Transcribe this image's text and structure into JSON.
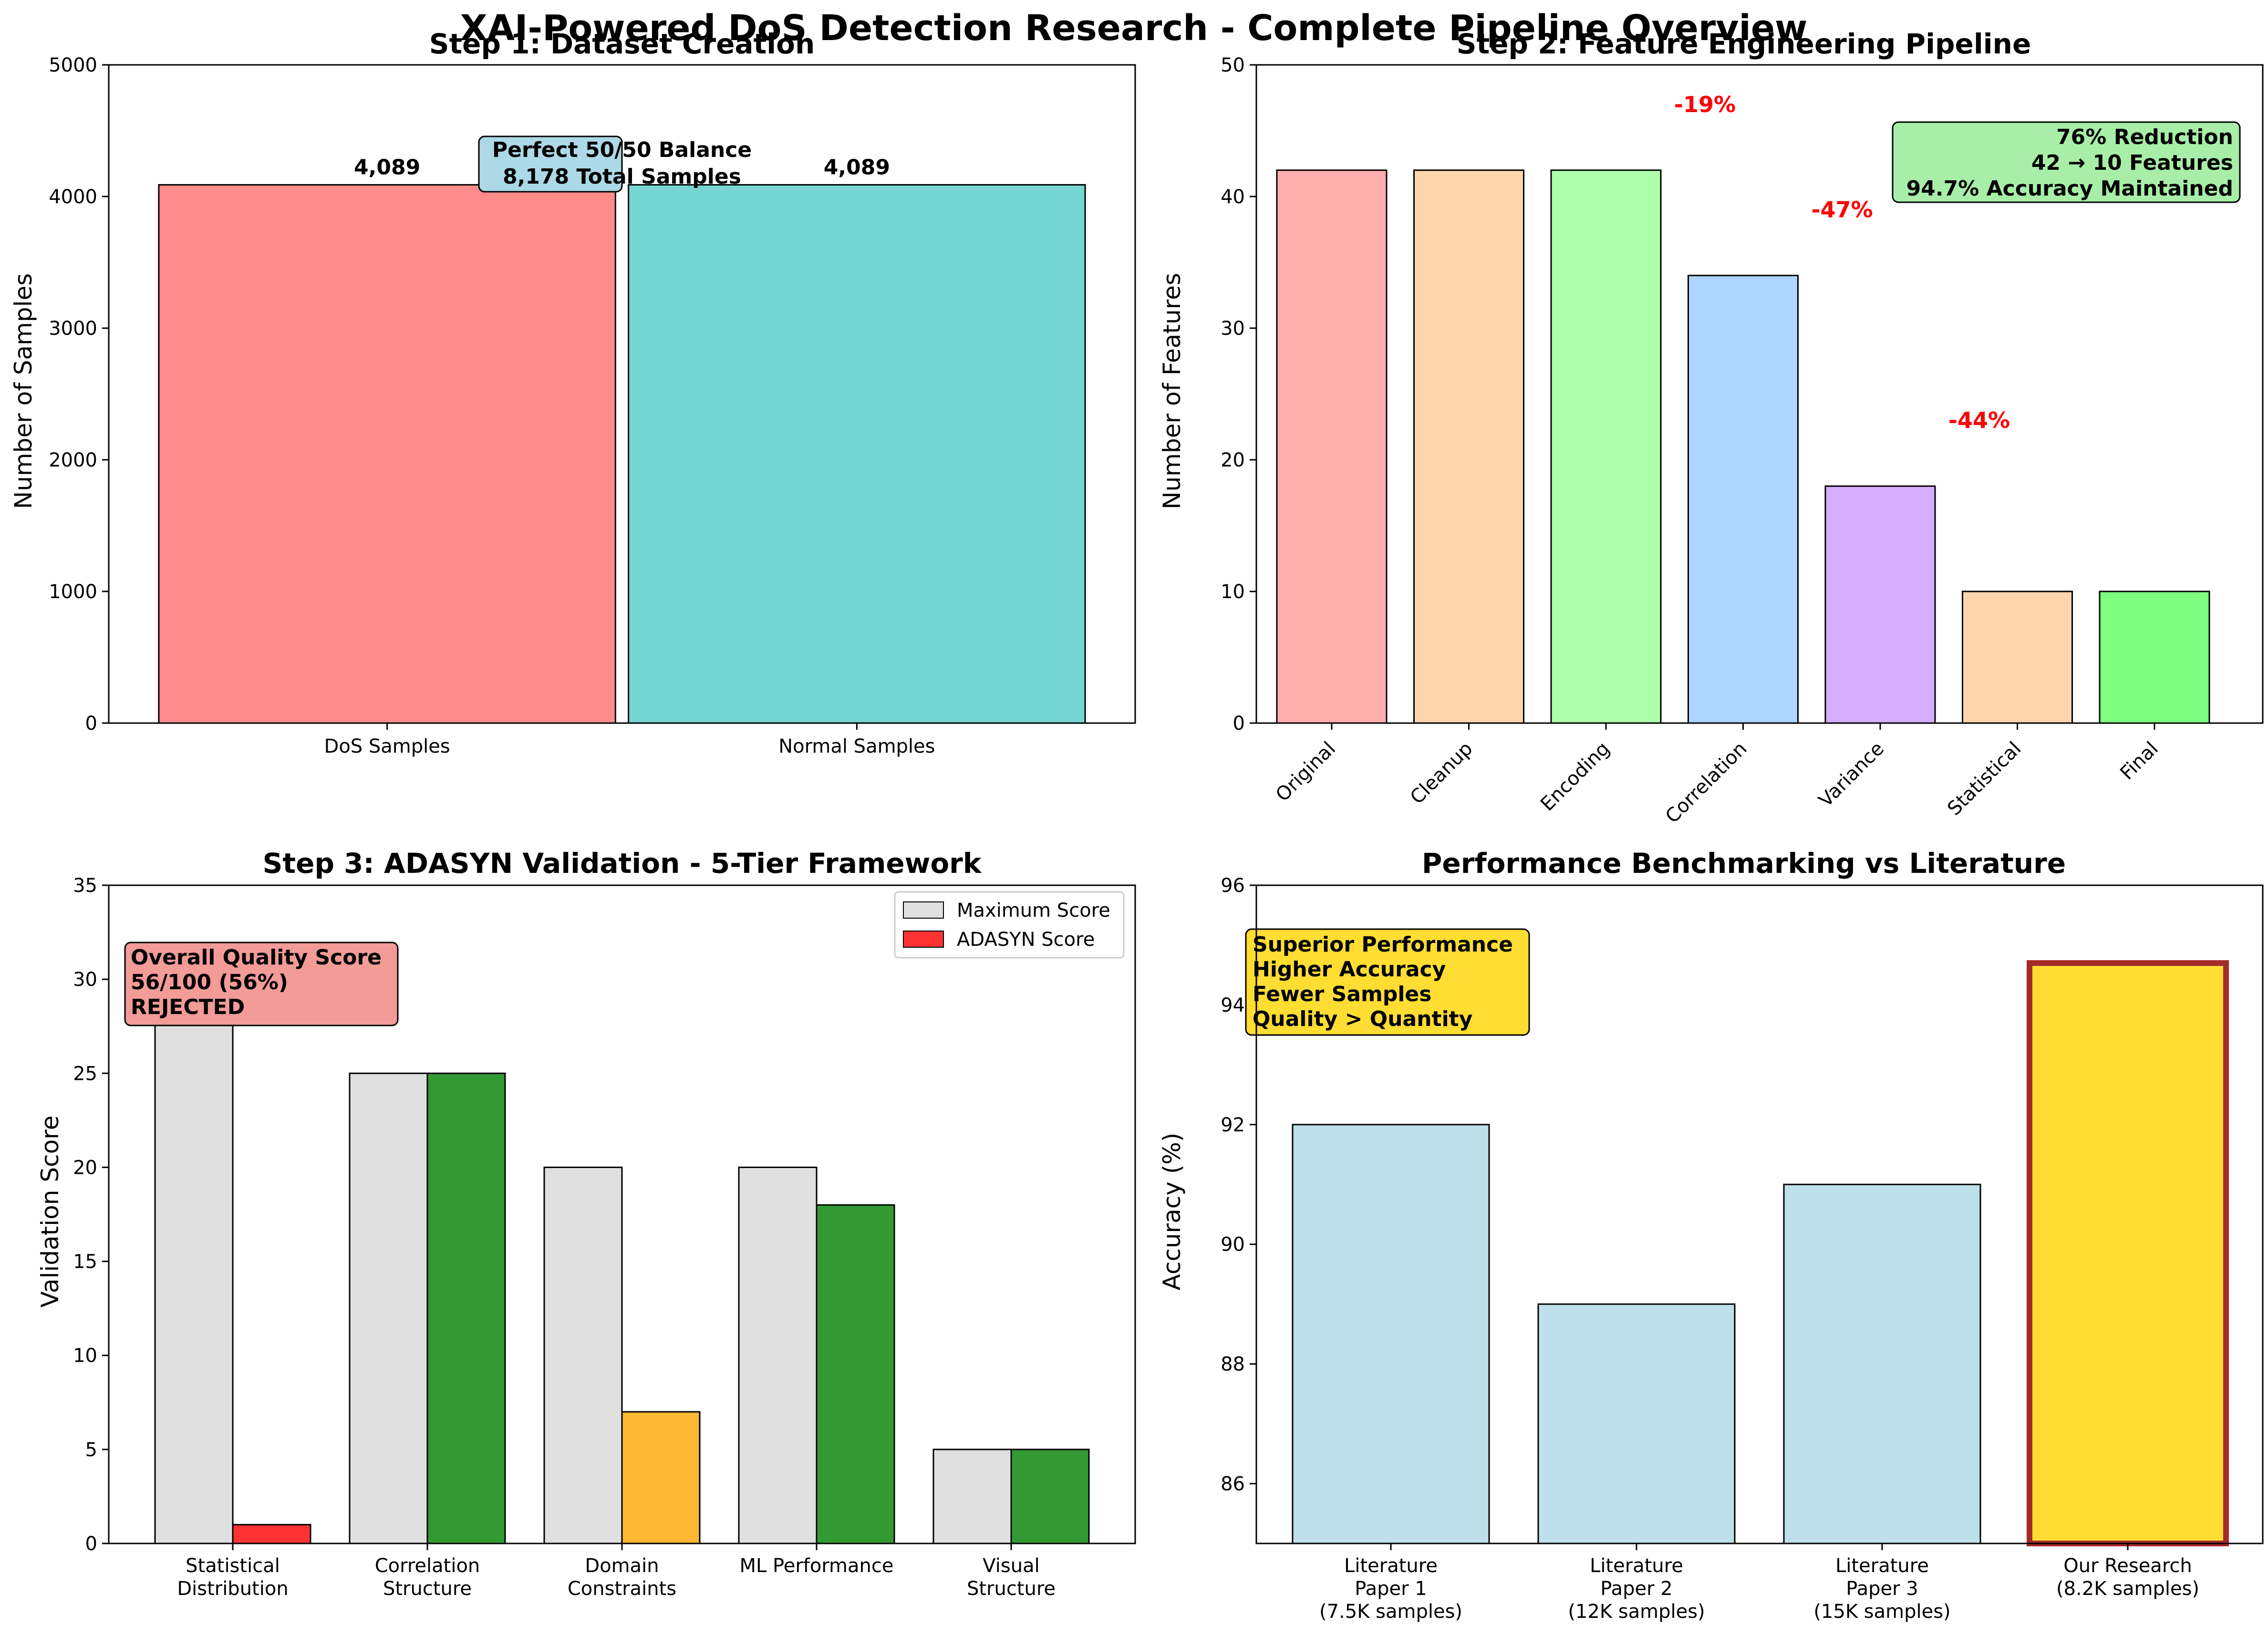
{
  "figure": {
    "suptitle": "XAI-Powered DoS Detection Research - Complete Pipeline Overview"
  },
  "chart_data": [
    {
      "type": "bar",
      "title": "Step 1: Dataset Creation",
      "xlabel": "",
      "ylabel": "Number of Samples",
      "categories": [
        "DoS Samples",
        "Normal Samples"
      ],
      "values": [
        4089,
        4089
      ],
      "data_labels": [
        "4,089",
        "4,089"
      ],
      "colors": [
        "#ff8b8b",
        "#76d7d2"
      ],
      "ylim": [
        0,
        5000
      ],
      "yticks": [
        0,
        1000,
        2000,
        3000,
        4000,
        5000
      ],
      "annotation": [
        "Perfect 50/50 Balance",
        "8,178 Total Samples"
      ],
      "annotation_color": "#add8e6",
      "grid": false
    },
    {
      "type": "bar",
      "title": "Step 2: Feature Engineering Pipeline",
      "xlabel": "",
      "ylabel": "Number of Features",
      "categories": [
        "Original",
        "Cleanup",
        "Encoding",
        "Correlation",
        "Variance",
        "Statistical",
        "Final"
      ],
      "values": [
        42,
        42,
        42,
        34,
        18,
        10,
        10
      ],
      "colors": [
        "#ffaeae",
        "#ffd5ad",
        "#adffad",
        "#add5ff",
        "#d6aeff",
        "#ffd5ad",
        "#80ff80"
      ],
      "ylim": [
        0,
        50
      ],
      "yticks": [
        0,
        10,
        20,
        30,
        40,
        50
      ],
      "reduction_labels": [
        {
          "after": "Encoding",
          "text": "-19%"
        },
        {
          "after": "Correlation",
          "text": "-47%"
        },
        {
          "after": "Variance",
          "text": "-44%"
        }
      ],
      "annotation": [
        "76% Reduction",
        "42 → 10 Features",
        "94.7% Accuracy Maintained"
      ],
      "annotation_color": "#a8eea8",
      "grid": false
    },
    {
      "type": "bar",
      "title": "Step 3: ADASYN Validation - 5-Tier Framework",
      "xlabel": "",
      "ylabel": "Validation Score",
      "categories": [
        "Statistical\nDistribution",
        "Correlation\nStructure",
        "Domain\nConstraints",
        "ML Performance",
        "Visual\nStructure"
      ],
      "series": [
        {
          "name": "Maximum Score",
          "values": [
            30,
            25,
            20,
            20,
            5
          ],
          "color": "#e0e0e0"
        },
        {
          "name": "ADASYN Score",
          "values": [
            1,
            25,
            7,
            18,
            5
          ],
          "colors": [
            "#ff3333",
            "#339933",
            "#ffb833",
            "#339933",
            "#339933"
          ],
          "legend_color": "#ff3333"
        }
      ],
      "ylim": [
        0,
        35
      ],
      "yticks": [
        0,
        5,
        10,
        15,
        20,
        25,
        30,
        35
      ],
      "legend_position": "upper-right",
      "annotation": [
        "Overall Quality Score",
        "56/100 (56%)",
        "REJECTED"
      ],
      "annotation_color": "#f29b97",
      "grid": false
    },
    {
      "type": "bar",
      "title": "Performance Benchmarking vs Literature",
      "xlabel": "",
      "ylabel": "Accuracy (%)",
      "categories": [
        "Literature\nPaper 1\n(7.5K samples)",
        "Literature\nPaper 2\n(12K samples)",
        "Literature\nPaper 3\n(15K samples)",
        "Our Research\n(8.2K samples)"
      ],
      "values": [
        92.0,
        89.0,
        91.0,
        94.7
      ],
      "colors": [
        "#bde0ea",
        "#bde0ea",
        "#bde0ea",
        "#ffdd33"
      ],
      "highlight_edge": "#a52a2a",
      "ylim": [
        85,
        96
      ],
      "yticks": [
        86,
        88,
        90,
        92,
        94,
        96
      ],
      "annotation": [
        "Superior Performance",
        "Higher Accuracy",
        "Fewer Samples",
        "Quality > Quantity"
      ],
      "annotation_color": "#ffdd33",
      "grid": false
    }
  ]
}
